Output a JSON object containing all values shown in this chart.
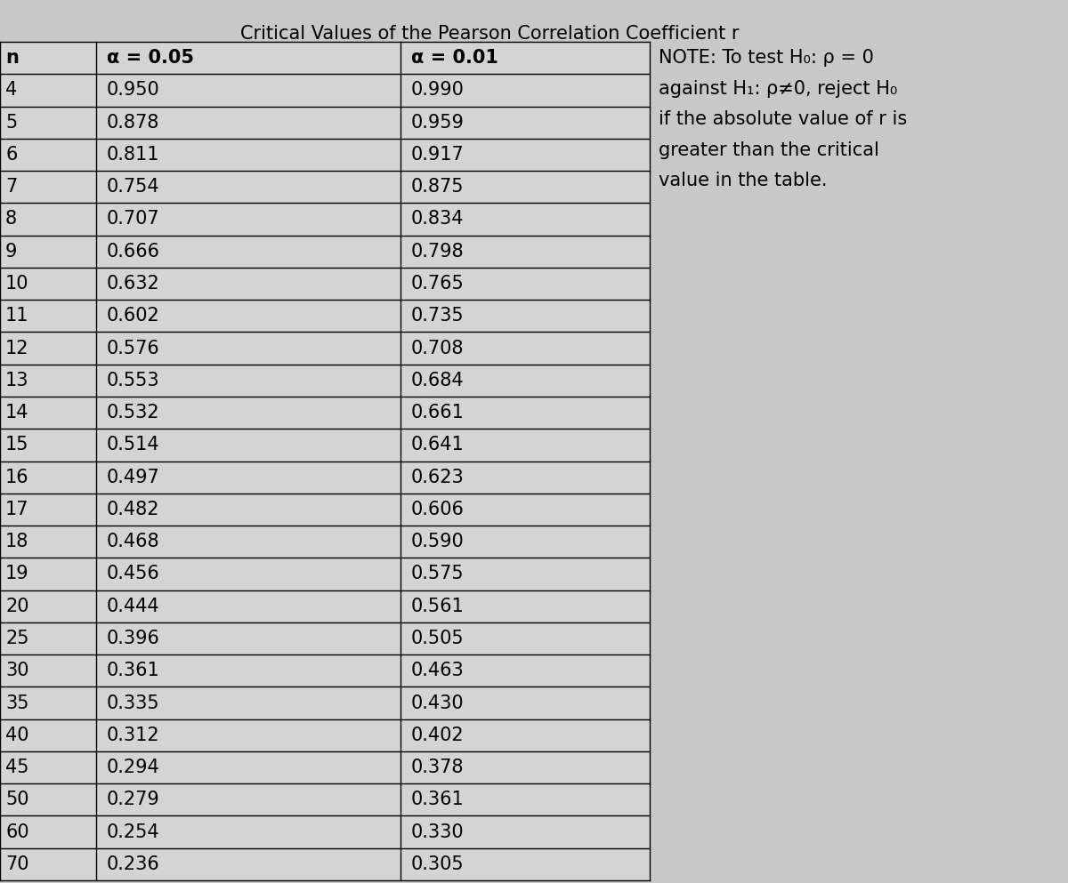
{
  "title": "Critical Values of the Pearson Correlation Coefficient r",
  "col_headers": [
    "n",
    "α = 0.05",
    "α = 0.01"
  ],
  "note_line1": "NOTE: To test H",
  "note_line1_sub": "0",
  "note_line1_rest": ": ρ = 0",
  "note_line2": "against H",
  "note_line2_sub": "1",
  "note_line2_rest": ": ρ≠0, reject H",
  "note_line2_end": "0",
  "note_line3": "if the absolute value of r is",
  "note_line4": "greater than the critical",
  "note_line5": "value in the table.",
  "rows": [
    [
      "4",
      "0.950",
      "0.990"
    ],
    [
      "5",
      "0.878",
      "0.959"
    ],
    [
      "6",
      "0.811",
      "0.917"
    ],
    [
      "7",
      "0.754",
      "0.875"
    ],
    [
      "8",
      "0.707",
      "0.834"
    ],
    [
      "9",
      "0.666",
      "0.798"
    ],
    [
      "10",
      "0.632",
      "0.765"
    ],
    [
      "11",
      "0.602",
      "0.735"
    ],
    [
      "12",
      "0.576",
      "0.708"
    ],
    [
      "13",
      "0.553",
      "0.684"
    ],
    [
      "14",
      "0.532",
      "0.661"
    ],
    [
      "15",
      "0.514",
      "0.641"
    ],
    [
      "16",
      "0.497",
      "0.623"
    ],
    [
      "17",
      "0.482",
      "0.606"
    ],
    [
      "18",
      "0.468",
      "0.590"
    ],
    [
      "19",
      "0.456",
      "0.575"
    ],
    [
      "20",
      "0.444",
      "0.561"
    ],
    [
      "25",
      "0.396",
      "0.505"
    ],
    [
      "30",
      "0.361",
      "0.463"
    ],
    [
      "35",
      "0.335",
      "0.430"
    ],
    [
      "40",
      "0.312",
      "0.402"
    ],
    [
      "45",
      "0.294",
      "0.378"
    ],
    [
      "50",
      "0.279",
      "0.361"
    ],
    [
      "60",
      "0.254",
      "0.330"
    ],
    [
      "70",
      "0.236",
      "0.305"
    ]
  ],
  "fig_bg": "#c8c8c8",
  "table_bg": "#d4d4d4",
  "border_color": "#000000",
  "text_color": "#000000",
  "title_fontsize": 15,
  "header_fontsize": 15,
  "cell_fontsize": 15,
  "note_fontsize": 15
}
